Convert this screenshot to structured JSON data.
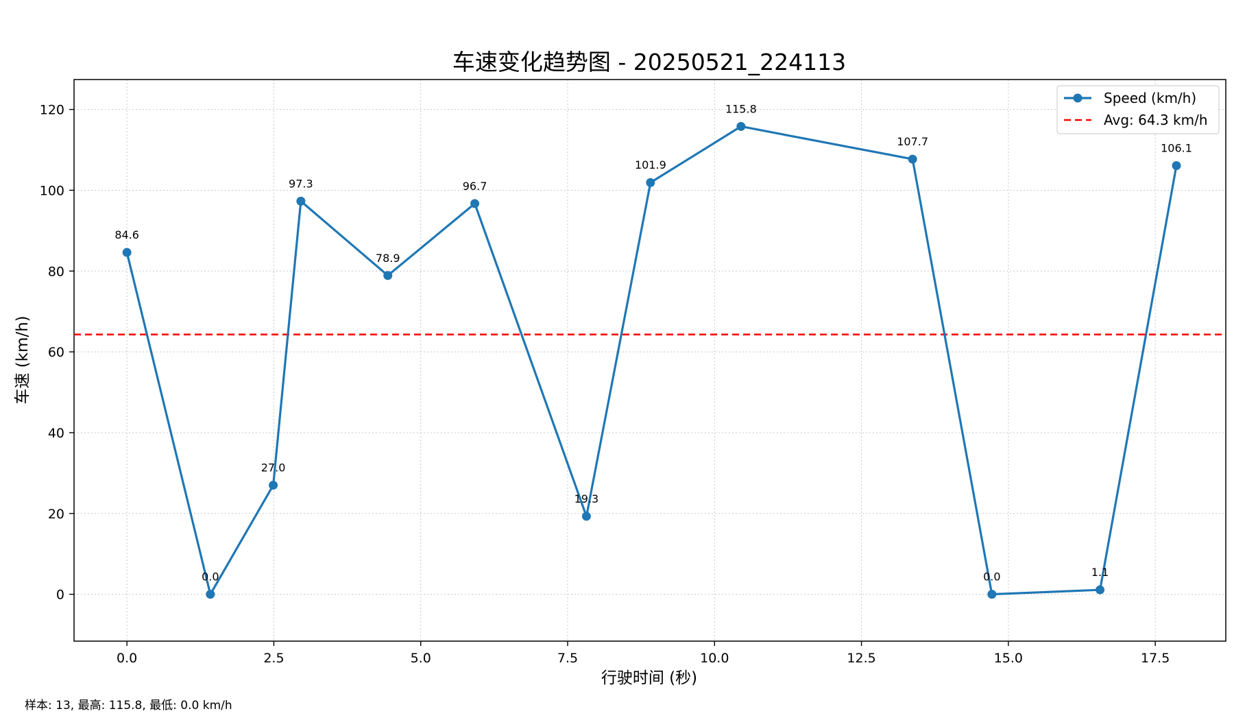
{
  "chart_data": {
    "type": "line",
    "title": "车速变化趋势图 - 20250521_224113",
    "xlabel": "行驶时间 (秒)",
    "ylabel": "车速 (km/h)",
    "xlim": [
      -0.9,
      18.7
    ],
    "ylim": [
      -11.6,
      127.4
    ],
    "x_ticks": [
      0.0,
      2.5,
      5.0,
      7.5,
      10.0,
      12.5,
      15.0,
      17.5
    ],
    "x_tick_labels": [
      "0.0",
      "2.5",
      "5.0",
      "7.5",
      "10.0",
      "12.5",
      "15.0",
      "17.5"
    ],
    "y_ticks": [
      0,
      20,
      40,
      60,
      80,
      100,
      120
    ],
    "y_tick_labels": [
      "0",
      "20",
      "40",
      "60",
      "80",
      "100",
      "120"
    ],
    "grid": true,
    "legend_position": "top-right",
    "series": [
      {
        "name": "Speed (km/h)",
        "color": "#1f77b4",
        "x": [
          0.0,
          1.42,
          2.49,
          2.96,
          4.44,
          5.92,
          7.82,
          8.91,
          10.45,
          13.37,
          14.72,
          16.56,
          17.86
        ],
        "values": [
          84.6,
          0.0,
          27.0,
          97.3,
          78.9,
          96.7,
          19.3,
          101.9,
          115.8,
          107.7,
          0.0,
          1.1,
          106.1
        ],
        "labels": [
          "84.6",
          "0.0",
          "27.0",
          "97.3",
          "78.9",
          "96.7",
          "19.3",
          "101.9",
          "115.8",
          "107.7",
          "0.0",
          "1.1",
          "106.1"
        ]
      }
    ],
    "reference_lines": [
      {
        "name": "Avg: 64.3 km/h",
        "y": 64.3,
        "color": "#ff0000",
        "style": "dashed"
      }
    ],
    "footer": "样本: 13, 最高: 115.8, 最低: 0.0 km/h"
  }
}
